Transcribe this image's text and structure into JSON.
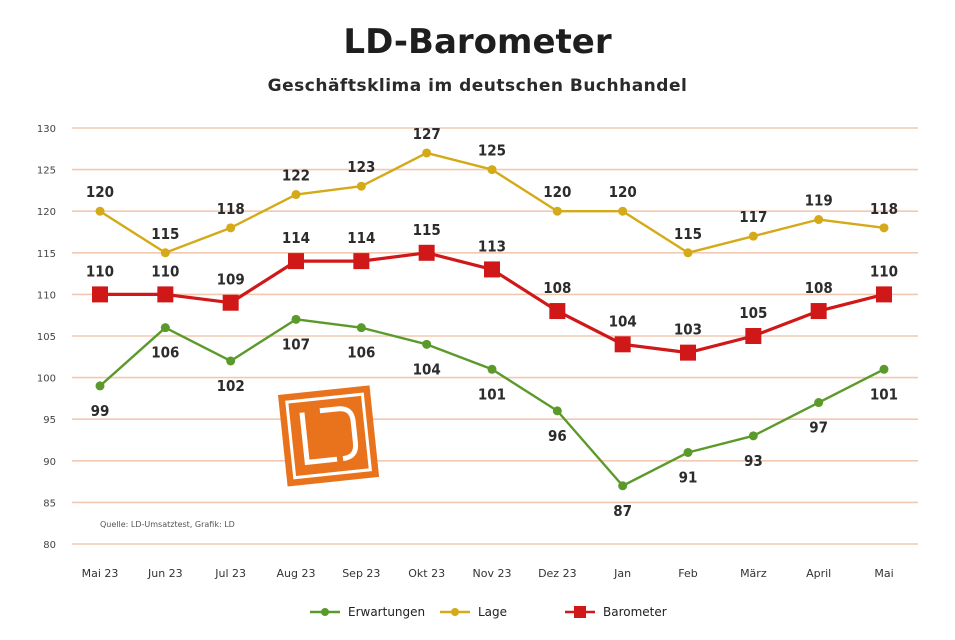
{
  "chart_data": {
    "type": "line",
    "title": "LD-Barometer",
    "subtitle": "Geschäftsklima im deutschen Buchhandel",
    "categories": [
      "Mai 23",
      "Jun 23",
      "Jul 23",
      "Aug 23",
      "Sep 23",
      "Okt 23",
      "Nov 23",
      "Dez 23",
      "Jan",
      "Feb",
      "März",
      "April",
      "Mai"
    ],
    "ylim": [
      80,
      130
    ],
    "yticks": [
      80,
      85,
      90,
      95,
      100,
      105,
      110,
      115,
      120,
      125,
      130
    ],
    "grid": true,
    "legend_position": "bottom",
    "series": [
      {
        "name": "Erwartungen",
        "color": "#5b9a2a",
        "values": [
          99,
          106,
          102,
          107,
          106,
          104,
          101,
          96,
          87,
          91,
          93,
          97,
          101
        ],
        "labels": [
          "99",
          "106",
          "102",
          "107",
          "106",
          "104",
          "101",
          "96",
          "87",
          "91",
          "93",
          "97",
          "101"
        ],
        "label_position": "below"
      },
      {
        "name": "Lage",
        "color": "#d4aa18",
        "values": [
          120,
          115,
          118,
          122,
          123,
          127,
          125,
          120,
          120,
          115,
          117,
          119,
          118
        ],
        "labels": [
          "120",
          "115",
          "118",
          "122",
          "123",
          "127",
          "125",
          "120",
          "120",
          "115",
          "117",
          "119",
          "118"
        ],
        "label_position": "above"
      },
      {
        "name": "Barometer",
        "color": "#d01818",
        "values": [
          110,
          110,
          109,
          114,
          114,
          115,
          113,
          108,
          104,
          103,
          105,
          108,
          110
        ],
        "labels": [
          "110",
          "110",
          "109",
          "114",
          "114",
          "115",
          "113",
          "108",
          "104",
          "103",
          "105",
          "108",
          "110"
        ],
        "label_position": "above"
      }
    ],
    "source_note": "Quelle: LD-Umsatztest, Grafik: LD"
  },
  "colors": {
    "gridline": "#f3c8b0",
    "logo_orange": "#e8731c",
    "axis_text": "#444444"
  },
  "logo": {
    "text": "LD"
  }
}
